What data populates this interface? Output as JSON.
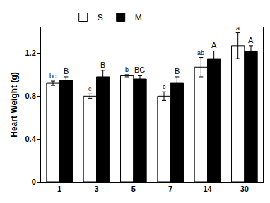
{
  "chart_data": {
    "type": "bar",
    "y_label": "Heart Weight (g)",
    "categories": [
      "1",
      "3",
      "5",
      "7",
      "14",
      "30"
    ],
    "series": [
      {
        "name": "S",
        "color": "#ffffff",
        "values": [
          0.92,
          0.8,
          0.99,
          0.8,
          1.07,
          1.27
        ],
        "errors": [
          0.02,
          0.02,
          0.01,
          0.04,
          0.09,
          0.12
        ],
        "letters": [
          "bc",
          "c",
          "b",
          "c",
          "ab",
          "a"
        ]
      },
      {
        "name": "M",
        "color": "#000000",
        "values": [
          0.95,
          0.98,
          0.96,
          0.92,
          1.15,
          1.22
        ],
        "errors": [
          0.03,
          0.06,
          0.03,
          0.06,
          0.07,
          0.05
        ],
        "letters": [
          "B",
          "B",
          "BC",
          "B",
          "A",
          "A"
        ]
      }
    ],
    "ylim": [
      0,
      1.44
    ],
    "yticks": [
      0,
      0.4,
      0.8,
      1.2
    ],
    "legend": "top",
    "grid": false
  }
}
